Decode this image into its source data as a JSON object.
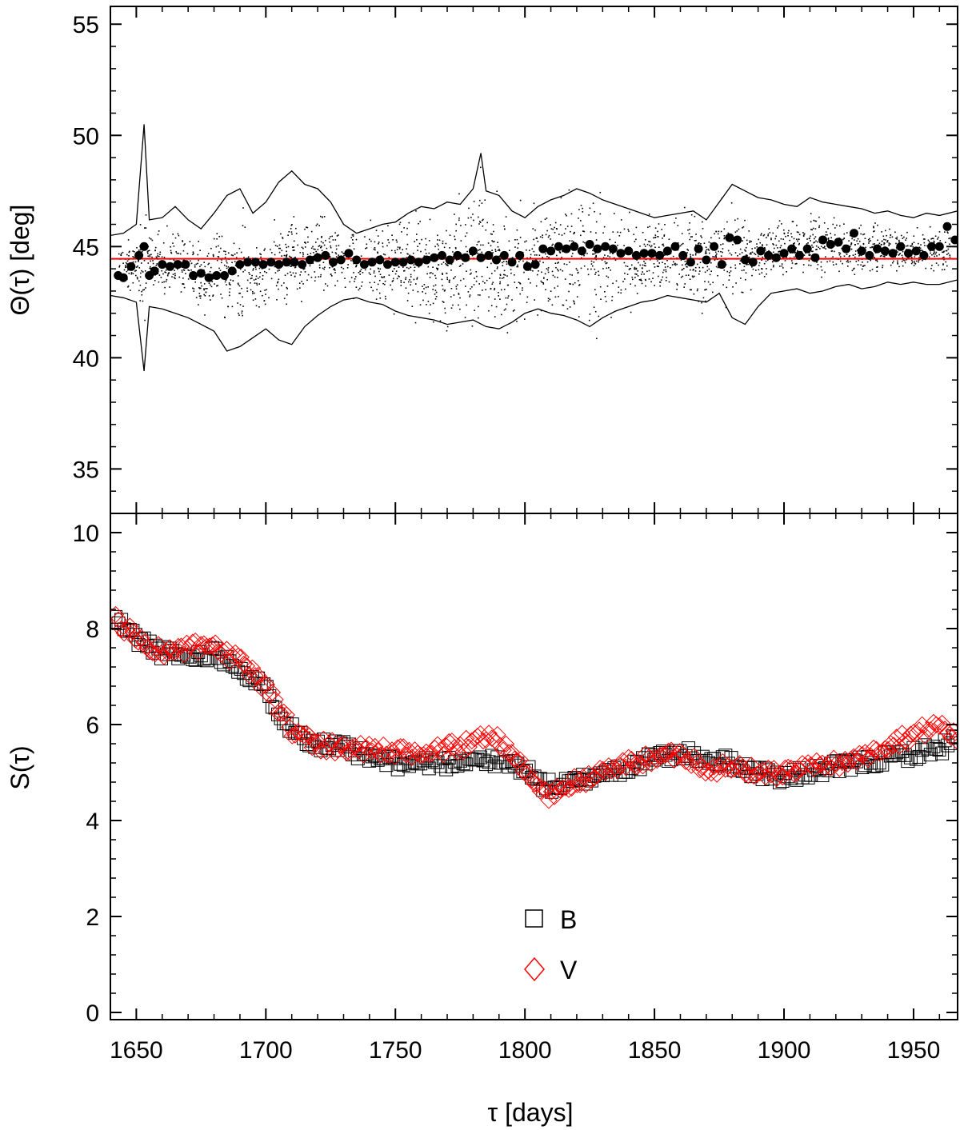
{
  "chart_data": [
    {
      "type": "scatter",
      "panel": "top",
      "ylabel": "Θ(τ) [deg]",
      "xlabel": "",
      "xlim": [
        1640,
        1967
      ],
      "ylim": [
        33,
        55.8
      ],
      "yticks": [
        35,
        40,
        45,
        50,
        55
      ],
      "ytick_labels": [
        "35",
        "40",
        "45",
        "50",
        "55"
      ],
      "grid": false,
      "reference_line": {
        "y": 44.45,
        "color": "#ff0000"
      },
      "series": [
        {
          "marker": "filled-circle",
          "color": "#000000",
          "x": [
            1643,
            1645,
            1648,
            1651,
            1653,
            1655,
            1657,
            1660,
            1663,
            1666,
            1669,
            1672,
            1675,
            1678,
            1681,
            1684,
            1687,
            1690,
            1693,
            1696,
            1699,
            1702,
            1705,
            1708,
            1711,
            1714,
            1717,
            1720,
            1723,
            1726,
            1729,
            1732,
            1735,
            1738,
            1741,
            1744,
            1747,
            1750,
            1753,
            1756,
            1759,
            1762,
            1765,
            1768,
            1771,
            1774,
            1777,
            1780,
            1783,
            1786,
            1789,
            1792,
            1795,
            1798,
            1801,
            1804,
            1807,
            1810,
            1813,
            1816,
            1819,
            1822,
            1825,
            1828,
            1831,
            1834,
            1837,
            1840,
            1843,
            1846,
            1849,
            1852,
            1855,
            1858,
            1861,
            1864,
            1867,
            1870,
            1873,
            1876,
            1879,
            1882,
            1885,
            1888,
            1891,
            1894,
            1897,
            1900,
            1903,
            1906,
            1909,
            1912,
            1915,
            1918,
            1921,
            1924,
            1927,
            1930,
            1933,
            1936,
            1939,
            1942,
            1945,
            1948,
            1951,
            1954,
            1957,
            1960,
            1963,
            1966
          ],
          "y": [
            43.7,
            43.6,
            44.1,
            44.6,
            45.0,
            43.7,
            43.9,
            44.2,
            44.1,
            44.2,
            44.2,
            43.7,
            43.8,
            43.6,
            43.7,
            43.7,
            43.9,
            44.2,
            44.3,
            44.3,
            44.2,
            44.3,
            44.2,
            44.3,
            44.3,
            44.2,
            44.4,
            44.5,
            44.6,
            44.3,
            44.4,
            44.7,
            44.4,
            44.2,
            44.3,
            44.4,
            44.2,
            44.3,
            44.3,
            44.4,
            44.3,
            44.4,
            44.5,
            44.6,
            44.4,
            44.6,
            44.5,
            44.8,
            44.5,
            44.6,
            44.4,
            44.6,
            44.3,
            44.6,
            44.1,
            44.2,
            44.9,
            44.8,
            45.0,
            44.9,
            45.0,
            44.8,
            45.1,
            44.9,
            45.0,
            44.9,
            44.7,
            44.8,
            44.6,
            44.7,
            44.7,
            44.6,
            44.8,
            45.0,
            44.6,
            44.3,
            44.9,
            44.4,
            45.0,
            44.2,
            45.4,
            45.3,
            44.4,
            44.3,
            44.8,
            44.6,
            44.5,
            44.7,
            44.9,
            44.6,
            44.9,
            44.5,
            45.3,
            45.1,
            45.2,
            44.9,
            45.6,
            44.8,
            44.6,
            44.9,
            44.8,
            44.7,
            45.0,
            44.7,
            44.8,
            44.6,
            45.0,
            45.0,
            45.9,
            45.3
          ]
        },
        {
          "marker": "line",
          "color": "#000000",
          "x": [
            1640,
            1645,
            1650,
            1653,
            1655,
            1660,
            1665,
            1670,
            1675,
            1680,
            1685,
            1690,
            1695,
            1700,
            1705,
            1710,
            1715,
            1720,
            1725,
            1730,
            1735,
            1740,
            1745,
            1750,
            1755,
            1760,
            1765,
            1770,
            1775,
            1780,
            1783,
            1785,
            1790,
            1795,
            1800,
            1805,
            1810,
            1815,
            1820,
            1825,
            1830,
            1835,
            1840,
            1845,
            1850,
            1855,
            1860,
            1865,
            1870,
            1875,
            1880,
            1885,
            1890,
            1895,
            1900,
            1905,
            1910,
            1915,
            1920,
            1925,
            1930,
            1935,
            1940,
            1945,
            1950,
            1955,
            1960,
            1967
          ],
          "y": [
            45.5,
            45.6,
            46.0,
            50.5,
            46.2,
            46.3,
            46.8,
            46.2,
            45.8,
            46.5,
            47.3,
            47.6,
            46.5,
            47.0,
            47.9,
            48.4,
            47.8,
            47.6,
            47.0,
            46.0,
            45.6,
            45.8,
            46.0,
            46.1,
            46.5,
            46.8,
            46.7,
            47.0,
            46.9,
            47.6,
            49.2,
            47.5,
            47.3,
            46.6,
            46.3,
            46.8,
            47.1,
            47.3,
            47.6,
            47.4,
            47.1,
            46.9,
            46.7,
            46.5,
            46.3,
            46.4,
            46.5,
            46.6,
            46.2,
            47.0,
            47.8,
            47.5,
            47.2,
            47.1,
            46.9,
            46.8,
            47.2,
            47.0,
            46.9,
            46.8,
            46.7,
            46.5,
            46.6,
            46.4,
            46.3,
            46.5,
            46.4,
            46.6
          ]
        },
        {
          "marker": "line",
          "color": "#000000",
          "x": [
            1640,
            1645,
            1650,
            1653,
            1655,
            1660,
            1665,
            1670,
            1675,
            1680,
            1685,
            1690,
            1695,
            1700,
            1705,
            1710,
            1715,
            1720,
            1725,
            1730,
            1735,
            1740,
            1745,
            1750,
            1755,
            1760,
            1765,
            1770,
            1775,
            1780,
            1785,
            1790,
            1795,
            1800,
            1805,
            1810,
            1815,
            1820,
            1825,
            1830,
            1835,
            1840,
            1845,
            1850,
            1855,
            1860,
            1865,
            1870,
            1875,
            1880,
            1885,
            1890,
            1895,
            1900,
            1905,
            1910,
            1915,
            1920,
            1925,
            1930,
            1935,
            1940,
            1945,
            1950,
            1955,
            1960,
            1967
          ],
          "y": [
            42.8,
            42.7,
            42.5,
            39.4,
            42.3,
            42.2,
            42.0,
            41.8,
            41.5,
            41.2,
            40.3,
            40.5,
            40.9,
            41.3,
            40.8,
            40.6,
            41.4,
            41.9,
            42.3,
            42.6,
            42.7,
            42.5,
            42.4,
            42.1,
            41.9,
            41.8,
            41.7,
            41.5,
            41.6,
            41.7,
            41.4,
            41.3,
            41.6,
            42.0,
            42.2,
            42.0,
            41.9,
            41.7,
            41.4,
            41.8,
            42.1,
            42.3,
            42.5,
            42.6,
            42.8,
            42.7,
            42.6,
            42.5,
            42.9,
            41.8,
            41.5,
            42.3,
            42.9,
            43.0,
            43.1,
            42.9,
            43.0,
            43.2,
            43.3,
            43.1,
            43.2,
            43.4,
            43.3,
            43.4,
            43.3,
            43.3,
            43.5
          ]
        }
      ]
    },
    {
      "type": "scatter",
      "panel": "bottom",
      "ylabel": "S(τ)",
      "xlabel": "τ [days]",
      "xlim": [
        1640,
        1967
      ],
      "ylim": [
        -0.15,
        10.4
      ],
      "yticks": [
        0,
        2,
        4,
        6,
        8,
        10
      ],
      "ytick_labels": [
        "0",
        "2",
        "4",
        "6",
        "8",
        "10"
      ],
      "xticks": [
        1650,
        1700,
        1750,
        1800,
        1850,
        1900,
        1950
      ],
      "xtick_labels": [
        "1650",
        "1700",
        "1750",
        "1800",
        "1850",
        "1900",
        "1950"
      ],
      "grid": false,
      "legend_position": "bottom-center",
      "series": [
        {
          "name": "B",
          "marker": "square",
          "color": "#000000",
          "x": [
            1642,
            1650,
            1660,
            1670,
            1680,
            1690,
            1700,
            1710,
            1720,
            1730,
            1740,
            1750,
            1760,
            1770,
            1780,
            1790,
            1800,
            1805,
            1810,
            1815,
            1820,
            1830,
            1840,
            1850,
            1860,
            1870,
            1880,
            1890,
            1900,
            1910,
            1920,
            1930,
            1940,
            1950,
            1960,
            1967
          ],
          "y": [
            8.2,
            7.8,
            7.5,
            7.4,
            7.5,
            7.2,
            6.7,
            5.9,
            5.6,
            5.5,
            5.3,
            5.2,
            5.2,
            5.2,
            5.3,
            5.2,
            5.1,
            4.8,
            4.7,
            4.75,
            4.8,
            5.0,
            5.1,
            5.3,
            5.4,
            5.3,
            5.2,
            5.0,
            4.9,
            5.0,
            5.1,
            5.2,
            5.3,
            5.4,
            5.5,
            5.7
          ]
        },
        {
          "name": "V",
          "marker": "diamond",
          "color": "#ff0000",
          "x": [
            1642,
            1650,
            1660,
            1670,
            1680,
            1690,
            1700,
            1710,
            1720,
            1730,
            1740,
            1750,
            1760,
            1770,
            1780,
            1785,
            1790,
            1795,
            1800,
            1805,
            1810,
            1815,
            1820,
            1830,
            1840,
            1850,
            1860,
            1870,
            1880,
            1890,
            1900,
            1910,
            1920,
            1930,
            1940,
            1950,
            1960,
            1967
          ],
          "y": [
            8.2,
            7.8,
            7.5,
            7.6,
            7.6,
            7.3,
            6.8,
            5.9,
            5.6,
            5.5,
            5.5,
            5.4,
            5.4,
            5.5,
            5.6,
            5.8,
            5.7,
            5.4,
            5.0,
            4.7,
            4.5,
            4.7,
            4.8,
            5.0,
            5.2,
            5.3,
            5.4,
            5.1,
            5.1,
            5.0,
            5.0,
            5.1,
            5.2,
            5.3,
            5.6,
            5.8,
            6.0,
            5.7
          ]
        }
      ]
    }
  ]
}
